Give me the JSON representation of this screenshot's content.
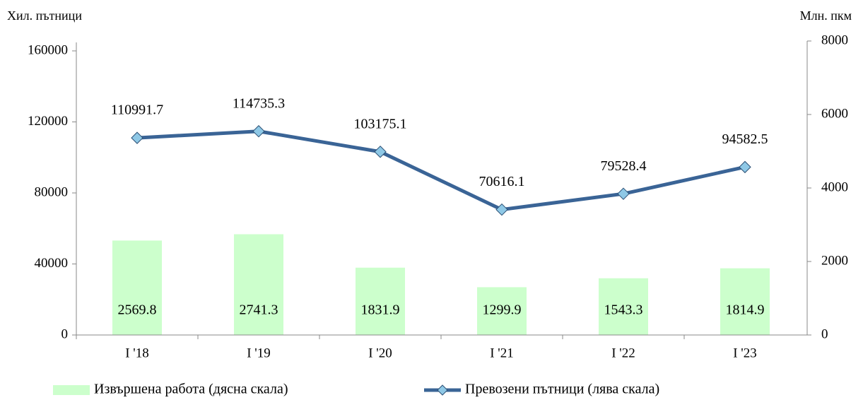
{
  "chart_data": {
    "type": "bar-line",
    "y_label": "Хил. пътници",
    "y2_label": "Млн. пкм",
    "categories": [
      "I '18",
      "I '19",
      "I '20",
      "I '21",
      "I '22",
      "I '23"
    ],
    "series": [
      {
        "name": "Извършена работа (дясна скала)",
        "type": "bar",
        "axis": "y2",
        "color": "#ccffcc",
        "values": [
          2569.8,
          2741.3,
          1831.9,
          1299.9,
          1543.3,
          1814.9
        ]
      },
      {
        "name": "Превозени пътници (лява скала)",
        "type": "line",
        "axis": "y",
        "color": "#3a6496",
        "marker_color": "#8ec8e6",
        "values": [
          110991.7,
          114735.3,
          103175.1,
          70616.1,
          79528.4,
          94582.5
        ]
      }
    ],
    "ylim": [
      0,
      160000
    ],
    "yticks": [
      0,
      40000,
      80000,
      120000,
      160000
    ],
    "y2lim": [
      0,
      8000
    ],
    "y2ticks": [
      0,
      2000,
      4000,
      6000,
      8000
    ]
  }
}
